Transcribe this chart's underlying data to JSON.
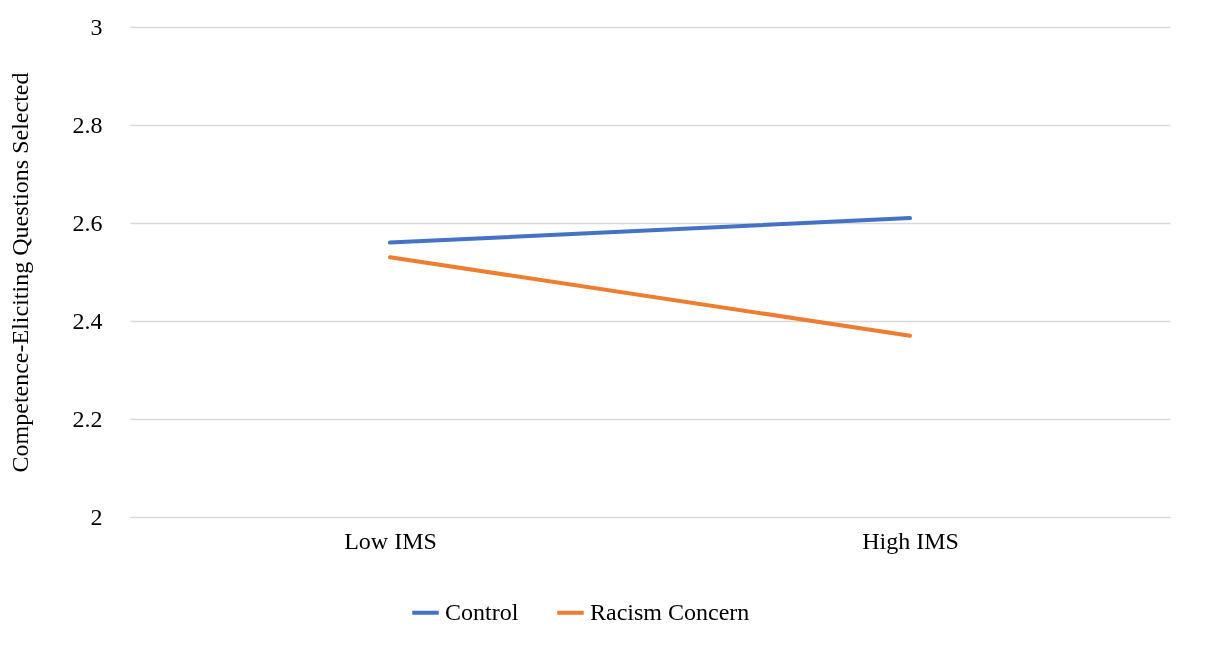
{
  "chart_data": {
    "type": "line",
    "ylabel": "Competence-Eliciting Questions Selected",
    "categories": [
      "Low IMS",
      "High IMS"
    ],
    "series": [
      {
        "name": "Control",
        "color": "#4472c4",
        "values": [
          2.56,
          2.61
        ]
      },
      {
        "name": "Racism Concern",
        "color": "#ed7d31",
        "values": [
          2.53,
          2.37
        ]
      }
    ],
    "ylim": [
      2,
      3
    ],
    "yticks": [
      2,
      2.2,
      2.4,
      2.6,
      2.8,
      3
    ],
    "grid": "y",
    "legend": "bottom",
    "marker": "none",
    "line_style": "solid"
  }
}
